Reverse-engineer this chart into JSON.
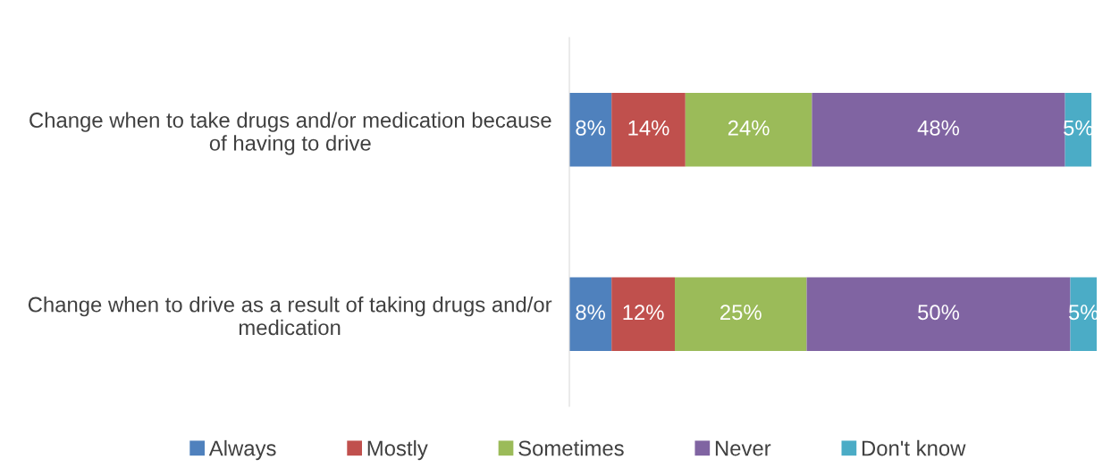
{
  "chart_data": {
    "type": "bar",
    "orientation": "horizontal",
    "stacked": true,
    "categories": [
      "Change when to take drugs and/or medication because of having to drive",
      "Change when to drive as a result of taking drugs and/or medication"
    ],
    "series": [
      {
        "name": "Always",
        "color": "#4f81bd",
        "values": [
          8,
          8
        ],
        "value_labels": [
          "8%",
          "8%"
        ]
      },
      {
        "name": "Mostly",
        "color": "#c0504d",
        "values": [
          14,
          12
        ],
        "value_labels": [
          "14%",
          "12%"
        ]
      },
      {
        "name": "Sometimes",
        "color": "#9bbb59",
        "values": [
          24,
          25
        ],
        "value_labels": [
          "24%",
          "25%"
        ]
      },
      {
        "name": "Never",
        "color": "#8064a2",
        "values": [
          48,
          50
        ],
        "value_labels": [
          "48%",
          "50%"
        ]
      },
      {
        "name": "Don't know",
        "color": "#4bacc6",
        "values": [
          5,
          5
        ],
        "value_labels": [
          "5%",
          "5%"
        ]
      }
    ],
    "legend": "bottom",
    "grid": false,
    "tick_labels": "y"
  }
}
